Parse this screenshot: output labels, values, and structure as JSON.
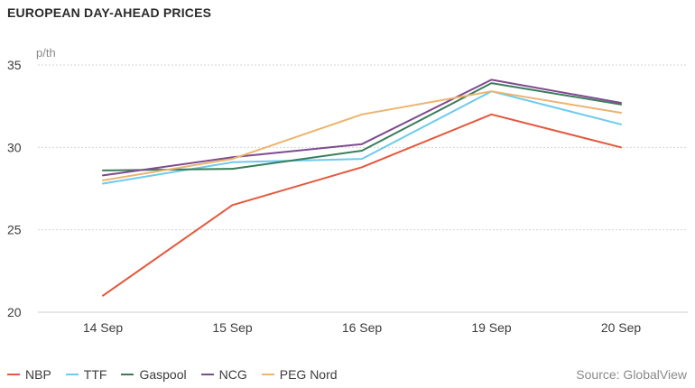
{
  "title": "EUROPEAN DAY-AHEAD PRICES",
  "source": "Source: GlobalView",
  "chart_data": {
    "type": "line",
    "title": "EUROPEAN DAY-AHEAD PRICES",
    "ylabel": "p/th",
    "xlabel": "",
    "categories": [
      "14 Sep",
      "15 Sep",
      "16 Sep",
      "19 Sep",
      "20 Sep"
    ],
    "ylim": [
      20,
      35
    ],
    "yticks": [
      20,
      25,
      30,
      35
    ],
    "grid": true,
    "legend_position": "bottom-left",
    "series": [
      {
        "name": "NBP",
        "color": "#e4583b",
        "values": [
          21.0,
          26.5,
          28.8,
          32.0,
          30.0
        ]
      },
      {
        "name": "TTF",
        "color": "#6ccbef",
        "values": [
          27.8,
          29.1,
          29.3,
          33.4,
          31.4
        ]
      },
      {
        "name": "Gaspool",
        "color": "#3a7d5a",
        "values": [
          28.6,
          28.7,
          29.8,
          33.9,
          32.6
        ]
      },
      {
        "name": "NCG",
        "color": "#7e4b8f",
        "values": [
          28.3,
          29.4,
          30.2,
          34.1,
          32.7
        ]
      },
      {
        "name": "PEG Nord",
        "color": "#ecb46e",
        "values": [
          28.0,
          29.3,
          32.0,
          33.4,
          32.1
        ]
      }
    ]
  }
}
